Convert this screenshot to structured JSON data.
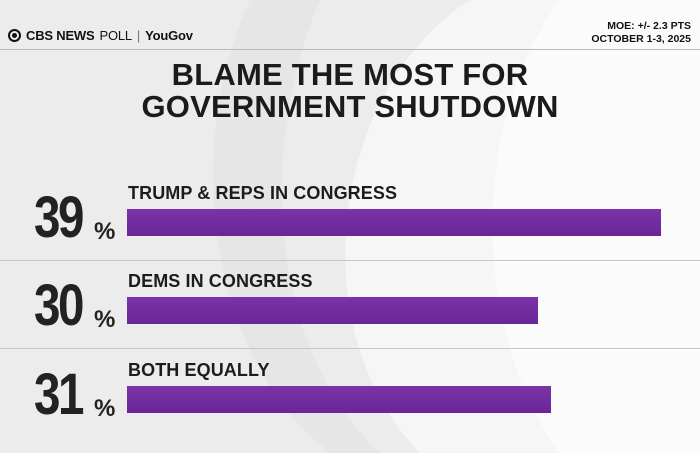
{
  "header": {
    "brand_main": "CBS NEWS",
    "brand_sub": "POLL",
    "brand_sep": "|",
    "brand_partner": "YouGov",
    "moe": "MOE: +/- 2.3 PTS",
    "dates": "OCTOBER 1-3, 2025"
  },
  "colors": {
    "bar": "#6f2a9c",
    "background": "#ececec",
    "text": "#1c1c1c"
  },
  "chart_data": {
    "type": "bar",
    "orientation": "horizontal",
    "title": "BLAME THE MOST FOR GOVERNMENT SHUTDOWN",
    "title_lines": [
      "BLAME THE MOST FOR",
      "GOVERNMENT SHUTDOWN"
    ],
    "categories": [
      "TRUMP & REPS IN CONGRESS",
      "DEMS IN CONGRESS",
      "BOTH EQUALLY"
    ],
    "values": [
      39,
      30,
      31
    ],
    "value_labels": [
      "39",
      "30",
      "31"
    ],
    "unit": "%",
    "xlim": [
      0,
      39
    ],
    "grid": false,
    "legend": "none"
  }
}
